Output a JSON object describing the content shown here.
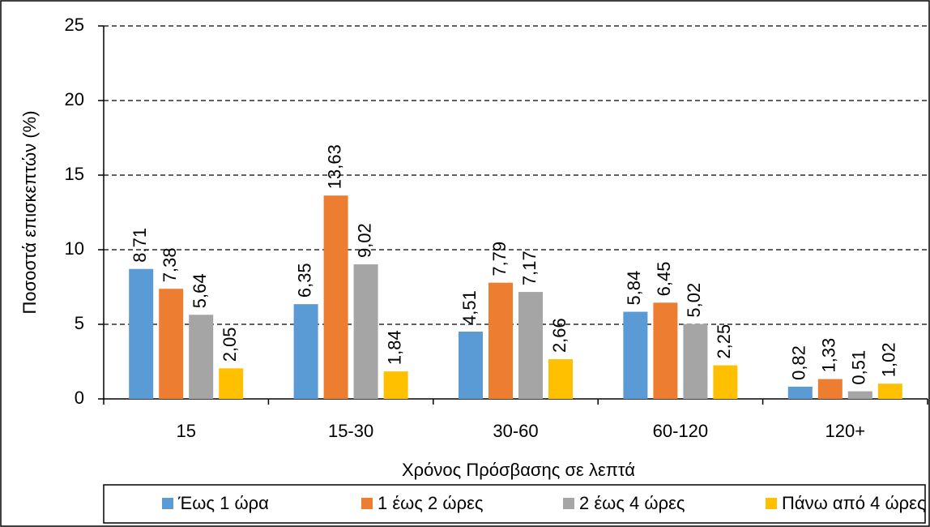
{
  "chart_data": {
    "type": "bar",
    "x_label": "Χρόνος Πρόσβασης σε λεπτά",
    "y_label": "Ποσοστά επισκεπτών (%)",
    "categories": [
      "15",
      "15-30",
      "30-60",
      "60-120",
      "120+"
    ],
    "series": [
      {
        "name": "Έως 1 ώρα",
        "color": "#5b9bd5",
        "values": [
          8.71,
          6.35,
          4.51,
          5.84,
          0.82
        ],
        "value_labels": [
          "8,71",
          "6,35",
          "4,51",
          "5,84",
          "0,82"
        ]
      },
      {
        "name": "1 έως 2 ώρες",
        "color": "#ed7d31",
        "values": [
          7.38,
          13.63,
          7.79,
          6.45,
          1.33
        ],
        "value_labels": [
          "7,38",
          "13,63",
          "7,79",
          "6,45",
          "1,33"
        ]
      },
      {
        "name": "2 έως 4 ώρες",
        "color": "#a5a5a5",
        "values": [
          5.64,
          9.02,
          7.17,
          5.02,
          0.51
        ],
        "value_labels": [
          "5,64",
          "9,02",
          "7,17",
          "5,02",
          "0,51"
        ]
      },
      {
        "name": "Πάνω από 4 ώρες",
        "color": "#ffc000",
        "values": [
          2.05,
          1.84,
          2.66,
          2.25,
          1.02
        ],
        "value_labels": [
          "2,05",
          "1,84",
          "2,66",
          "2,25",
          "1,02"
        ]
      }
    ],
    "ylim": [
      0,
      25
    ],
    "yticks": [
      0,
      5,
      10,
      15,
      20,
      25
    ],
    "grid": true,
    "legend": "bottom"
  }
}
